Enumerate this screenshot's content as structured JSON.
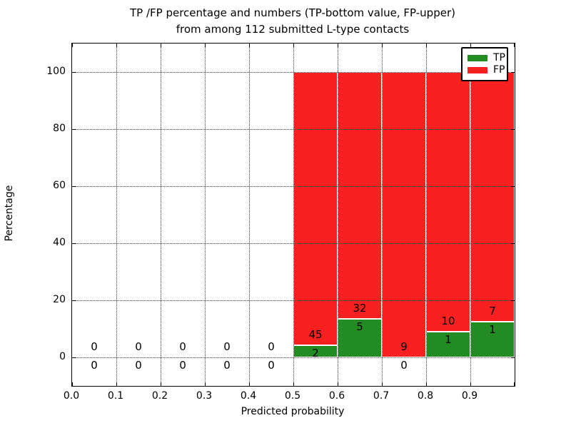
{
  "figure": {
    "title_line1": "TP /FP percentage and numbers (TP-bottom value, FP-upper)",
    "title_line2": "from among 112 submitted L-type contacts",
    "xlabel": "Predicted probability",
    "ylabel": "Percentage"
  },
  "colors": {
    "tp_green": "#228b22",
    "fp_red": "#f92020",
    "grid": "#3a3a3a",
    "text": "#000000",
    "background": "#ffffff"
  },
  "chart_data": {
    "type": "bar",
    "stacked": true,
    "title": "TP /FP percentage and numbers (TP-bottom value, FP-upper) from among 112 submitted L-type contacts",
    "total_submitted_contacts": 112,
    "xlabel": "Predicted probability",
    "ylabel": "Percentage",
    "xlim": [
      0.0,
      1.0
    ],
    "ylim": [
      -10,
      110
    ],
    "x_ticks": [
      "0.0",
      "0.1",
      "0.2",
      "0.3",
      "0.4",
      "0.5",
      "0.6",
      "0.7",
      "0.8",
      "0.9"
    ],
    "y_ticks": [
      0,
      20,
      40,
      60,
      80,
      100
    ],
    "grid": true,
    "grid_style": "dotted",
    "grid_above_bars": true,
    "legend": {
      "position": "upper right",
      "entries": [
        {
          "label": "TP",
          "color": "#228b22"
        },
        {
          "label": "FP",
          "color": "#f92020"
        }
      ]
    },
    "bins": [
      {
        "range": [
          0.0,
          0.1
        ],
        "tp_count": 0,
        "fp_count": 0,
        "tp_pct": 0,
        "fp_pct": 0
      },
      {
        "range": [
          0.1,
          0.2
        ],
        "tp_count": 0,
        "fp_count": 0,
        "tp_pct": 0,
        "fp_pct": 0
      },
      {
        "range": [
          0.2,
          0.3
        ],
        "tp_count": 0,
        "fp_count": 0,
        "tp_pct": 0,
        "fp_pct": 0
      },
      {
        "range": [
          0.3,
          0.4
        ],
        "tp_count": 0,
        "fp_count": 0,
        "tp_pct": 0,
        "fp_pct": 0
      },
      {
        "range": [
          0.4,
          0.5
        ],
        "tp_count": 0,
        "fp_count": 0,
        "tp_pct": 0,
        "fp_pct": 0
      },
      {
        "range": [
          0.5,
          0.6
        ],
        "tp_count": 2,
        "fp_count": 45,
        "tp_pct": 4.26,
        "fp_pct": 95.74
      },
      {
        "range": [
          0.6,
          0.7
        ],
        "tp_count": 5,
        "fp_count": 32,
        "tp_pct": 13.51,
        "fp_pct": 86.49
      },
      {
        "range": [
          0.7,
          0.8
        ],
        "tp_count": 0,
        "fp_count": 9,
        "tp_pct": 0,
        "fp_pct": 100
      },
      {
        "range": [
          0.8,
          0.9
        ],
        "tp_count": 1,
        "fp_count": 10,
        "tp_pct": 9.09,
        "fp_pct": 90.91
      },
      {
        "range": [
          0.9,
          1.0
        ],
        "tp_count": 1,
        "fp_count": 7,
        "tp_pct": 12.5,
        "fp_pct": 87.5
      }
    ]
  }
}
